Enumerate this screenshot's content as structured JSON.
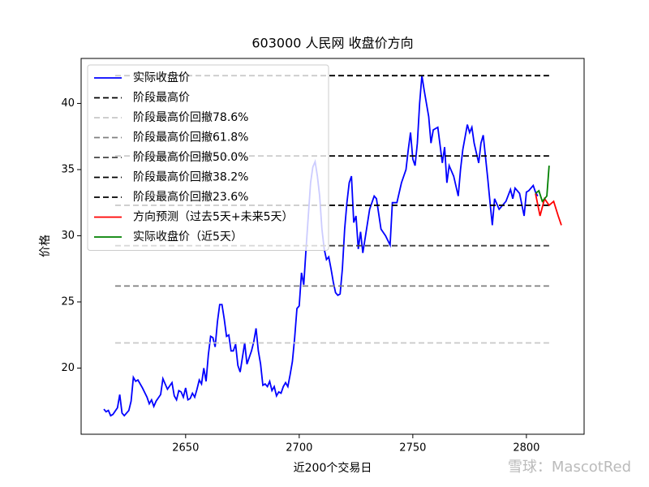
{
  "chart_data": {
    "type": "line",
    "title": "603000 人民网 收盘价方向",
    "xlabel": "近200个交易日",
    "ylabel": "价格",
    "watermark": "雪球：MascotRed",
    "xlim": [
      2604,
      2825.4
    ],
    "ylim": [
      15,
      43.4
    ],
    "xticks": [
      2650,
      2700,
      2750,
      2800
    ],
    "yticks": [
      20,
      25,
      30,
      35,
      40
    ],
    "legend": "upper left",
    "series": [
      {
        "name": "实际收盘价",
        "color": "#0000ff",
        "dash": "solid",
        "x": [
          2614,
          2615,
          2616,
          2617,
          2618,
          2620,
          2621,
          2622,
          2623,
          2625,
          2626,
          2627,
          2628,
          2629,
          2631,
          2633,
          2634,
          2635,
          2636,
          2637,
          2639,
          2640,
          2641,
          2642,
          2644,
          2645,
          2646,
          2647,
          2648,
          2649,
          2650,
          2651,
          2652,
          2653,
          2654,
          2655,
          2656,
          2657,
          2658,
          2659,
          2660,
          2661,
          2662,
          2663,
          2664,
          2665,
          2666,
          2667,
          2668,
          2669,
          2670,
          2671,
          2672,
          2673,
          2674,
          2675,
          2676,
          2677,
          2678,
          2679,
          2680,
          2681,
          2682,
          2683,
          2684,
          2685,
          2686,
          2687,
          2688,
          2689,
          2690,
          2691,
          2692,
          2693,
          2694,
          2695,
          2696,
          2697,
          2698,
          2699,
          2700,
          2701,
          2702,
          2703,
          2704,
          2705,
          2706,
          2707,
          2708,
          2709,
          2710,
          2711,
          2712,
          2713,
          2714,
          2715,
          2716,
          2717,
          2718,
          2719,
          2720,
          2721,
          2722,
          2723,
          2724,
          2725,
          2726,
          2727,
          2728,
          2729,
          2731,
          2733,
          2734,
          2736,
          2738,
          2740,
          2741,
          2743,
          2745,
          2747,
          2748,
          2749,
          2750,
          2751,
          2752,
          2753,
          2754,
          2755,
          2757,
          2758,
          2759,
          2761,
          2763,
          2764,
          2765,
          2766,
          2768,
          2770,
          2771,
          2772,
          2774,
          2775,
          2776,
          2777,
          2779,
          2780,
          2781,
          2783,
          2784,
          2785,
          2786,
          2788,
          2789,
          2791,
          2793,
          2794,
          2795,
          2797,
          2799,
          2800,
          2801,
          2803,
          2804,
          2805
        ],
        "values": [
          16.9,
          16.7,
          16.8,
          16.4,
          16.5,
          17.0,
          18.0,
          16.6,
          16.4,
          16.8,
          17.5,
          19.3,
          19.0,
          19.1,
          18.5,
          17.8,
          17.3,
          17.6,
          17.1,
          17.5,
          18.0,
          19.2,
          18.8,
          18.4,
          18.9,
          17.9,
          17.6,
          18.3,
          18.2,
          17.8,
          18.5,
          17.6,
          17.7,
          18.1,
          17.8,
          18.4,
          19.1,
          18.8,
          20.0,
          19.0,
          21.0,
          22.4,
          22.3,
          21.6,
          23.5,
          24.8,
          24.8,
          23.7,
          22.4,
          22.5,
          21.3,
          21.3,
          21.8,
          20.2,
          19.7,
          20.8,
          21.9,
          20.3,
          20.8,
          21.3,
          22.0,
          23.0,
          21.3,
          20.3,
          18.7,
          18.8,
          18.6,
          19.0,
          18.3,
          18.6,
          17.9,
          18.2,
          18.1,
          18.6,
          18.9,
          18.6,
          19.5,
          20.5,
          22.3,
          24.5,
          24.7,
          27.2,
          26.3,
          29.0,
          31.5,
          34.0,
          35.2,
          35.6,
          34.5,
          33.0,
          30.5,
          29.0,
          28.2,
          28.4,
          27.5,
          26.5,
          25.7,
          25.5,
          25.6,
          27.5,
          30.5,
          32.5,
          34.0,
          34.5,
          31.0,
          31.5,
          29.0,
          30.3,
          28.7,
          29.8,
          32.0,
          33.0,
          32.8,
          30.5,
          30.0,
          29.3,
          32.5,
          32.5,
          34.0,
          35.0,
          36.5,
          37.8,
          35.8,
          35.3,
          37.0,
          40.0,
          42.1,
          41.0,
          39.0,
          37.0,
          38.0,
          38.2,
          35.5,
          36.7,
          34.0,
          35.3,
          34.5,
          33.0,
          35.0,
          36.5,
          38.4,
          37.8,
          38.2,
          37.0,
          35.5,
          37.0,
          37.6,
          34.3,
          32.5,
          30.8,
          32.8,
          32.0,
          32.2,
          32.6,
          33.5,
          32.8,
          33.6,
          33.2,
          31.5,
          33.3,
          33.4,
          33.8,
          33.3,
          33.0
        ]
      },
      {
        "name": "阶段最高价",
        "color": "#000000",
        "dash": "dashed",
        "x": [
          2619,
          2810
        ],
        "values": [
          42.1,
          42.1
        ]
      },
      {
        "name": "阶段最高价回撤78.6%",
        "color": "#c8c8c8",
        "dash": "dashed",
        "x": [
          2619,
          2810
        ],
        "values": [
          21.9,
          21.9
        ]
      },
      {
        "name": "阶段最高价回撤61.8%",
        "color": "#808080",
        "dash": "dashed",
        "x": [
          2619,
          2810
        ],
        "values": [
          26.2,
          26.2
        ]
      },
      {
        "name": "阶段最高价回撤50.0%",
        "color": "#444444",
        "dash": "dashed",
        "x": [
          2619,
          2810
        ],
        "values": [
          29.25,
          29.25
        ]
      },
      {
        "name": "阶段最高价回撤38.2%",
        "color": "#000000",
        "dash": "dashed",
        "x": [
          2619,
          2810
        ],
        "values": [
          32.3,
          32.3
        ]
      },
      {
        "name": "阶段最高价回撤23.6%",
        "color": "#000000",
        "dash": "dashed",
        "x": [
          2619,
          2810
        ],
        "values": [
          36.03,
          36.03
        ]
      },
      {
        "name": "方向预测（过去5天+未来5天）",
        "color": "#ff0000",
        "dash": "solid",
        "x": [
          2804,
          2806,
          2808,
          2810,
          2812,
          2814,
          2815.4
        ],
        "values": [
          33.2,
          31.5,
          32.8,
          32.3,
          32.6,
          31.5,
          30.8
        ]
      },
      {
        "name": "实际收盘价（近5天）",
        "color": "#008000",
        "dash": "solid",
        "x": [
          2804,
          2805.5,
          2807,
          2808,
          2809,
          2810
        ],
        "values": [
          33.2,
          33.4,
          32.6,
          32.8,
          33.0,
          35.3
        ]
      }
    ]
  }
}
